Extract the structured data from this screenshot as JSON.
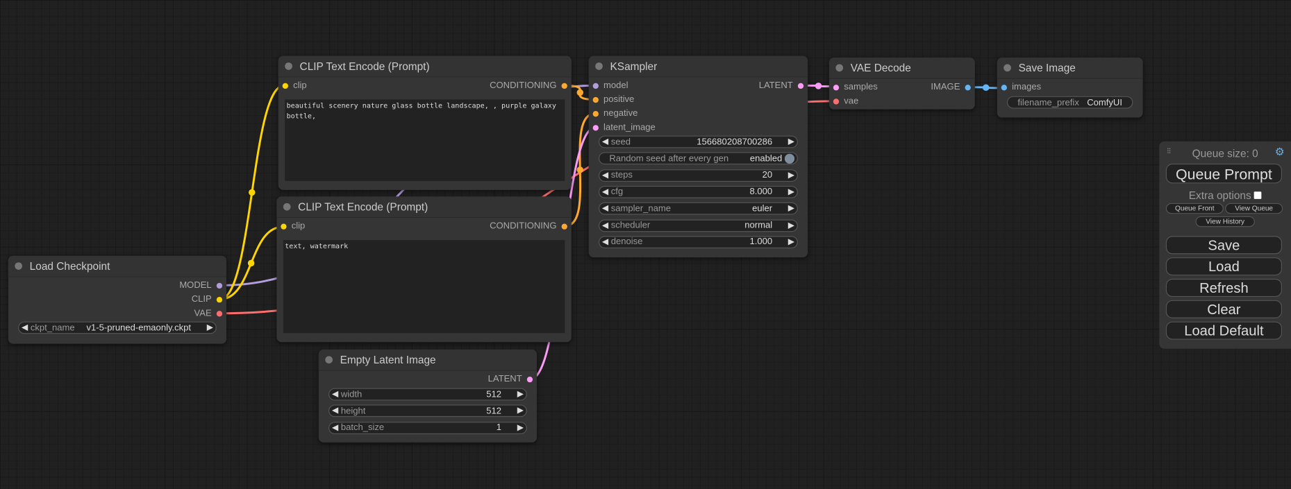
{
  "colors": {
    "model": "#b39ddb",
    "clip": "#ffd500",
    "vae": "#ff6e6e",
    "conditioning": "#ffa931",
    "latent": "#ff9cf9",
    "image": "#64b5f6",
    "toggle": "#7f8e9c"
  },
  "nodes": {
    "load_checkpoint": {
      "title": "Load Checkpoint",
      "outputs": [
        "MODEL",
        "CLIP",
        "VAE"
      ],
      "widgets": [
        {
          "label": "ckpt_name",
          "value": "v1-5-pruned-emaonly.ckpt"
        }
      ]
    },
    "clip_pos": {
      "title": "CLIP Text Encode (Prompt)",
      "inputs": [
        "clip"
      ],
      "outputs": [
        "CONDITIONING"
      ],
      "text": "beautiful scenery nature glass bottle landscape, , purple galaxy bottle,"
    },
    "clip_neg": {
      "title": "CLIP Text Encode (Prompt)",
      "inputs": [
        "clip"
      ],
      "outputs": [
        "CONDITIONING"
      ],
      "text": "text, watermark"
    },
    "empty_latent": {
      "title": "Empty Latent Image",
      "outputs": [
        "LATENT"
      ],
      "widgets": [
        {
          "label": "width",
          "value": "512"
        },
        {
          "label": "height",
          "value": "512"
        },
        {
          "label": "batch_size",
          "value": "1"
        }
      ]
    },
    "ksampler": {
      "title": "KSampler",
      "inputs": [
        "model",
        "positive",
        "negative",
        "latent_image"
      ],
      "outputs": [
        "LATENT"
      ],
      "widgets": [
        {
          "label": "seed",
          "value": "156680208700286"
        },
        {
          "label": "Random seed after every gen",
          "value": "enabled",
          "toggle": true
        },
        {
          "label": "steps",
          "value": "20"
        },
        {
          "label": "cfg",
          "value": "8.000"
        },
        {
          "label": "sampler_name",
          "value": "euler"
        },
        {
          "label": "scheduler",
          "value": "normal"
        },
        {
          "label": "denoise",
          "value": "1.000"
        }
      ]
    },
    "vae_decode": {
      "title": "VAE Decode",
      "inputs": [
        "samples",
        "vae"
      ],
      "outputs": [
        "IMAGE"
      ]
    },
    "save_image": {
      "title": "Save Image",
      "inputs": [
        "images"
      ],
      "widgets": [
        {
          "label": "filename_prefix",
          "value": "ComfyUI",
          "plain": true
        }
      ]
    }
  },
  "queue": {
    "size_label": "Queue size: 0",
    "queue_prompt": "Queue Prompt",
    "extra_options": "Extra options",
    "queue_front": "Queue Front",
    "view_queue": "View Queue",
    "view_history": "View History",
    "save": "Save",
    "load": "Load",
    "refresh": "Refresh",
    "clear": "Clear",
    "load_default": "Load Default"
  }
}
